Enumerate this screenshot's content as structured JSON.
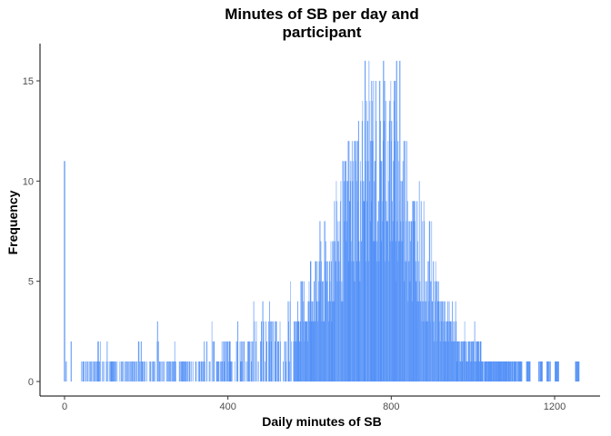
{
  "chart_data": {
    "type": "bar",
    "title_line1": "Minutes of SB per day and",
    "title_line2": "participant",
    "xlabel": "Daily minutes of SB",
    "ylabel": "Frequency",
    "xlim": [
      -40,
      1280
    ],
    "ylim": [
      0,
      16.8
    ],
    "xticks": [
      0,
      400,
      800,
      1200
    ],
    "yticks": [
      0,
      5,
      10,
      15
    ],
    "bar_color": "#4f8ef7",
    "grid": false,
    "spike_at_zero": {
      "x": 0,
      "y": 11
    },
    "bins": [
      [
        40,
        1
      ],
      [
        50,
        1
      ],
      [
        60,
        1
      ],
      [
        70,
        1
      ],
      [
        80,
        2
      ],
      [
        90,
        1
      ],
      [
        100,
        2
      ],
      [
        110,
        1
      ],
      [
        120,
        1
      ],
      [
        130,
        1
      ],
      [
        140,
        1
      ],
      [
        150,
        1
      ],
      [
        160,
        1
      ],
      [
        170,
        1
      ],
      [
        180,
        3
      ],
      [
        190,
        1
      ],
      [
        200,
        1
      ],
      [
        210,
        1
      ],
      [
        220,
        2
      ],
      [
        230,
        1
      ],
      [
        240,
        1
      ],
      [
        250,
        1
      ],
      [
        260,
        2
      ],
      [
        270,
        1
      ],
      [
        280,
        1
      ],
      [
        290,
        1
      ],
      [
        300,
        1
      ],
      [
        310,
        1
      ],
      [
        320,
        1
      ],
      [
        330,
        1
      ],
      [
        340,
        2
      ],
      [
        350,
        1
      ],
      [
        360,
        2
      ],
      [
        370,
        1
      ],
      [
        380,
        2
      ],
      [
        390,
        2
      ],
      [
        400,
        2
      ],
      [
        410,
        2
      ],
      [
        420,
        2
      ],
      [
        430,
        2
      ],
      [
        440,
        2
      ],
      [
        450,
        2
      ],
      [
        460,
        3
      ],
      [
        470,
        2
      ],
      [
        480,
        3
      ],
      [
        490,
        3
      ],
      [
        500,
        3
      ],
      [
        510,
        3
      ],
      [
        520,
        3
      ],
      [
        530,
        3
      ],
      [
        540,
        3
      ],
      [
        550,
        4
      ],
      [
        560,
        3
      ],
      [
        570,
        4
      ],
      [
        580,
        4
      ],
      [
        590,
        4
      ],
      [
        600,
        5
      ],
      [
        610,
        5
      ],
      [
        620,
        6
      ],
      [
        630,
        6
      ],
      [
        640,
        6
      ],
      [
        650,
        7
      ],
      [
        660,
        8
      ],
      [
        670,
        8
      ],
      [
        680,
        9
      ],
      [
        690,
        10
      ],
      [
        700,
        10
      ],
      [
        710,
        11
      ],
      [
        720,
        11
      ],
      [
        730,
        12
      ],
      [
        740,
        12
      ],
      [
        750,
        13
      ],
      [
        760,
        12
      ],
      [
        770,
        12
      ],
      [
        780,
        13
      ],
      [
        790,
        12
      ],
      [
        800,
        12
      ],
      [
        810,
        11
      ],
      [
        820,
        10
      ],
      [
        830,
        10
      ],
      [
        840,
        9
      ],
      [
        850,
        8
      ],
      [
        860,
        8
      ],
      [
        870,
        7
      ],
      [
        880,
        6
      ],
      [
        890,
        6
      ],
      [
        900,
        5
      ],
      [
        910,
        4
      ],
      [
        920,
        4
      ],
      [
        930,
        3
      ],
      [
        940,
        3
      ],
      [
        950,
        3
      ],
      [
        960,
        2
      ],
      [
        970,
        2
      ],
      [
        980,
        2
      ],
      [
        990,
        2
      ],
      [
        1000,
        2
      ],
      [
        1010,
        2
      ],
      [
        1020,
        1
      ],
      [
        1030,
        1
      ],
      [
        1040,
        1
      ],
      [
        1050,
        1
      ],
      [
        1060,
        1
      ],
      [
        1070,
        1
      ],
      [
        1080,
        1
      ],
      [
        1090,
        1
      ],
      [
        1100,
        1
      ],
      [
        1110,
        1
      ],
      [
        1130,
        1
      ],
      [
        1160,
        1
      ],
      [
        1180,
        1
      ],
      [
        1200,
        1
      ],
      [
        1250,
        1
      ]
    ],
    "peaks": [
      [
        735,
        16
      ],
      [
        780,
        16
      ],
      [
        812,
        16
      ],
      [
        820,
        16
      ]
    ]
  }
}
